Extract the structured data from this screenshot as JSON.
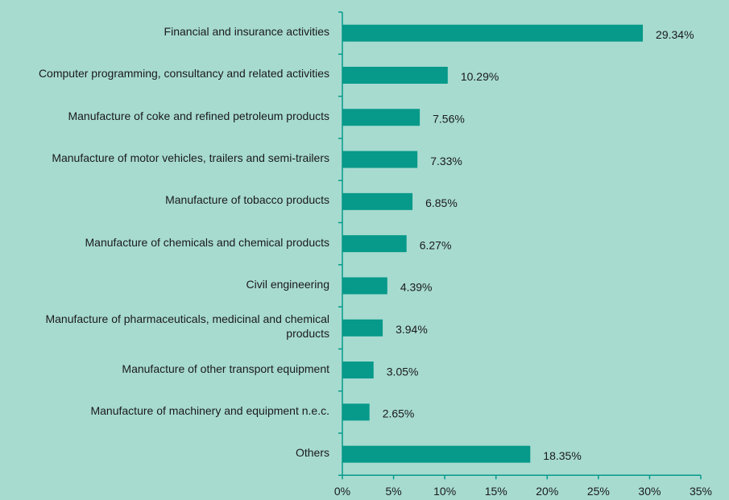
{
  "chart_data": {
    "type": "barh",
    "categories": [
      "Financial and insurance activities",
      "Computer programming, consultancy and related activities",
      "Manufacture of coke and refined petroleum products",
      "Manufacture of motor vehicles, trailers and semi-trailers",
      "Manufacture of tobacco products",
      "Manufacture of chemicals and chemical products",
      "Civil engineering",
      "Manufacture of pharmaceuticals, medicinal and chemical products",
      "Manufacture of other transport equipment",
      "Manufacture of machinery and equipment n.e.c.",
      "Others"
    ],
    "values": [
      29.34,
      10.29,
      7.56,
      7.33,
      6.85,
      6.27,
      4.39,
      3.94,
      3.05,
      2.65,
      18.35
    ],
    "value_labels": [
      "29.34%",
      "10.29%",
      "7.56%",
      "7.33%",
      "6.85%",
      "6.27%",
      "4.39%",
      "3.94%",
      "3.05%",
      "2.65%",
      "18.35%"
    ],
    "color": "#07998a",
    "xlim": [
      0,
      35
    ],
    "xticks": [
      {
        "value": 0,
        "label": "0%"
      },
      {
        "value": 5,
        "label": "5%"
      },
      {
        "value": 10,
        "label": "10%"
      },
      {
        "value": 15,
        "label": "15%"
      },
      {
        "value": 20,
        "label": "20%"
      },
      {
        "value": 25,
        "label": "25%"
      },
      {
        "value": 30,
        "label": "30%"
      },
      {
        "value": 35,
        "label": "35%"
      }
    ]
  }
}
